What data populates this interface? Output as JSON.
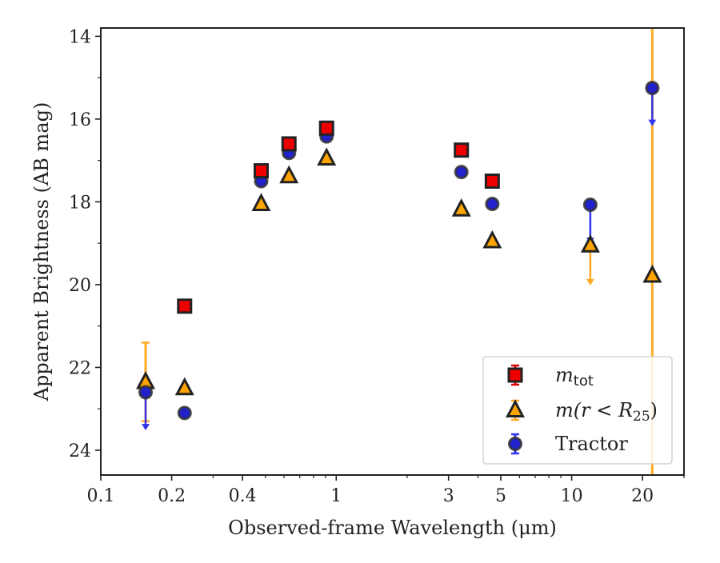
{
  "chart_data": {
    "type": "scatter",
    "xlabel": "Observed-frame Wavelength (μm)",
    "ylabel": "Apparent Brightness (AB mag)",
    "xscale": "log",
    "xlim": [
      0.1,
      30
    ],
    "ylim": [
      24.6,
      13.8
    ],
    "y_inverted": true,
    "grid": false,
    "legend_position": "lower-right",
    "x_ticks": [
      {
        "value": 0.1,
        "label": "0.1"
      },
      {
        "value": 0.2,
        "label": "0.2"
      },
      {
        "value": 0.4,
        "label": "0.4"
      },
      {
        "value": 1,
        "label": "1"
      },
      {
        "value": 3,
        "label": "3"
      },
      {
        "value": 5,
        "label": "5"
      },
      {
        "value": 10,
        "label": "10"
      },
      {
        "value": 20,
        "label": "20"
      }
    ],
    "y_ticks": [
      {
        "value": 14,
        "label": "14"
      },
      {
        "value": 16,
        "label": "16"
      },
      {
        "value": 18,
        "label": "18"
      },
      {
        "value": 20,
        "label": "20"
      },
      {
        "value": 22,
        "label": "22"
      },
      {
        "value": 24,
        "label": "24"
      }
    ],
    "series": [
      {
        "name": "m_tot",
        "label_main": "m",
        "label_sub": "tot",
        "marker": "square",
        "fill": "#ee0000",
        "edge": "#222222",
        "err_color": "#dd0000",
        "points": [
          {
            "x": 0.227,
            "y": 20.52
          },
          {
            "x": 0.48,
            "y": 17.25
          },
          {
            "x": 0.63,
            "y": 16.6
          },
          {
            "x": 0.91,
            "y": 16.22
          },
          {
            "x": 3.4,
            "y": 16.75
          },
          {
            "x": 4.6,
            "y": 17.5
          }
        ]
      },
      {
        "name": "m(r < R_25)",
        "label_pre": "m(r < R",
        "label_sub": "25",
        "label_post": ")",
        "marker": "triangle",
        "fill": "#ffa500",
        "edge": "#222222",
        "err_color": "#ffaa22",
        "points": [
          {
            "x": 0.155,
            "y": 22.35,
            "yerr": [
              21.4,
              23.3
            ]
          },
          {
            "x": 0.227,
            "y": 22.5,
            "yerr": [
              22.42,
              22.6
            ]
          },
          {
            "x": 0.48,
            "y": 18.05
          },
          {
            "x": 0.63,
            "y": 17.38
          },
          {
            "x": 0.91,
            "y": 16.95
          },
          {
            "x": 3.4,
            "y": 18.18
          },
          {
            "x": 4.6,
            "y": 18.95
          },
          {
            "x": 12.0,
            "y": 19.05,
            "upper_limit_to": 20.0
          },
          {
            "x": 22.0,
            "y": 19.78,
            "yerr": [
              13.8,
              24.6
            ]
          }
        ]
      },
      {
        "name": "Tractor",
        "label_main": "Tractor",
        "marker": "circle",
        "fill": "#2222cc",
        "edge": "#333333",
        "err_color": "#3333ee",
        "points": [
          {
            "x": 0.155,
            "y": 22.6,
            "upper_limit_to": 23.5
          },
          {
            "x": 0.227,
            "y": 23.1
          },
          {
            "x": 0.48,
            "y": 17.5
          },
          {
            "x": 0.63,
            "y": 16.82
          },
          {
            "x": 0.91,
            "y": 16.42
          },
          {
            "x": 3.4,
            "y": 17.28
          },
          {
            "x": 4.6,
            "y": 18.05
          },
          {
            "x": 12.0,
            "y": 18.07,
            "upper_limit_to": 19.0
          },
          {
            "x": 22.0,
            "y": 15.25,
            "upper_limit_to": 16.15
          }
        ]
      }
    ]
  }
}
